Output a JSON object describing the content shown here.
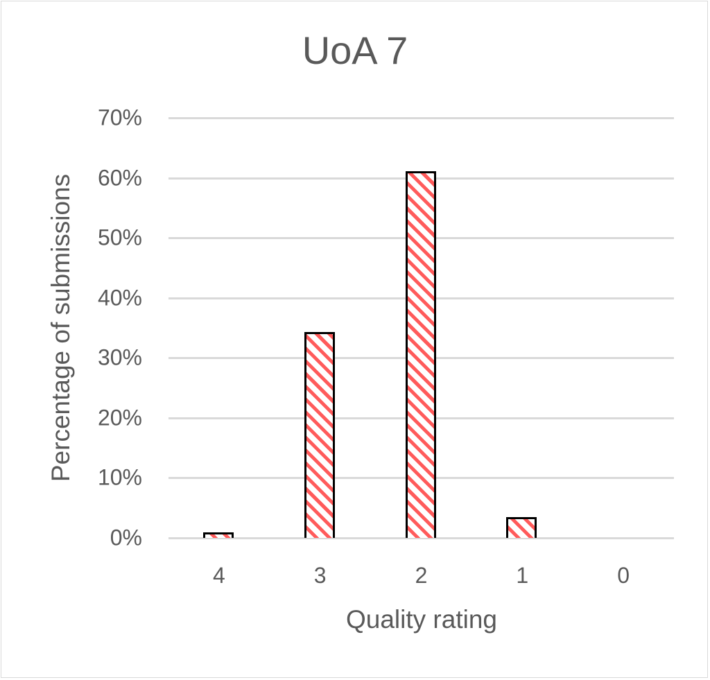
{
  "chart_data": {
    "type": "bar",
    "title": "UoA 7",
    "xlabel": "Quality rating",
    "ylabel": "Percentage of submissions",
    "categories": [
      "4",
      "3",
      "2",
      "1",
      "0"
    ],
    "values": [
      0.9,
      34.3,
      61.1,
      3.5,
      0.0
    ],
    "value_unit": "%",
    "ylim": [
      0,
      70
    ],
    "yticks": [
      "0%",
      "10%",
      "20%",
      "30%",
      "40%",
      "50%",
      "60%",
      "70%"
    ],
    "grid": true,
    "legend": null,
    "bar_style": {
      "fill_pattern": "diagonal stripes",
      "stripe_color": "#ff5b5b",
      "border_color": "#000000"
    }
  },
  "labels": {
    "title": "UoA 7",
    "xlabel": "Quality rating",
    "ylabel": "Percentage of submissions"
  }
}
